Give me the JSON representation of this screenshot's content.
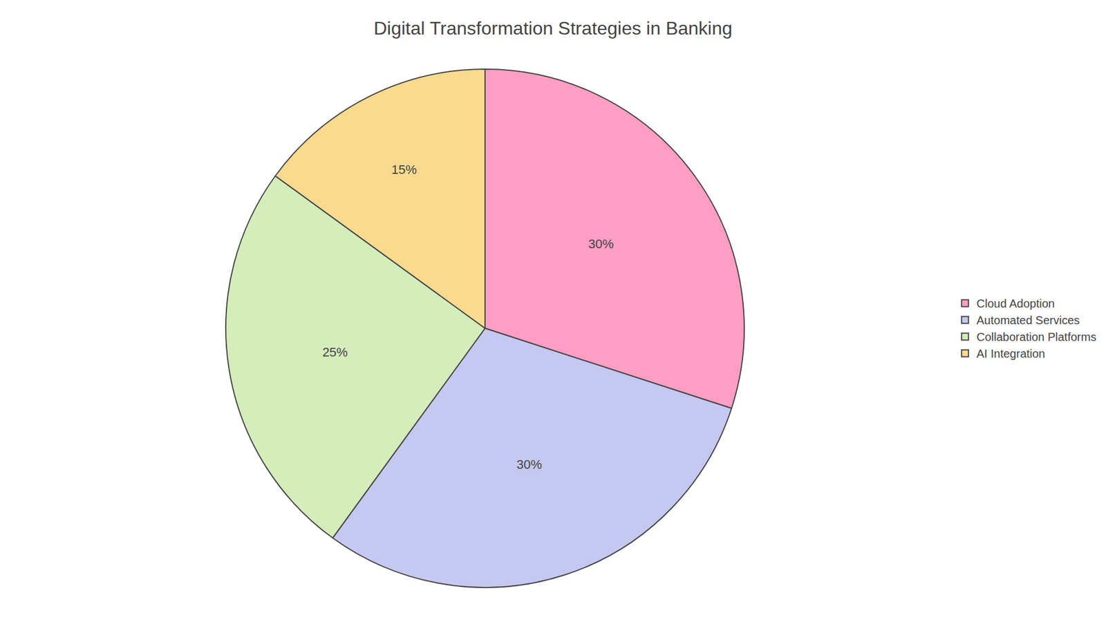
{
  "chart_data": {
    "type": "pie",
    "title": "Digital Transformation Strategies in Banking",
    "categories": [
      "Cloud Adoption",
      "Automated Services",
      "Collaboration Platforms",
      "AI Integration"
    ],
    "values": [
      30,
      30,
      25,
      15
    ],
    "value_labels": [
      "30%",
      "30%",
      "25%",
      "15%"
    ],
    "colors": [
      "#FF9EC4",
      "#C5C8F0",
      "#D4EDBA",
      "#FADA8E"
    ],
    "data_labels": true,
    "legend": "right"
  }
}
